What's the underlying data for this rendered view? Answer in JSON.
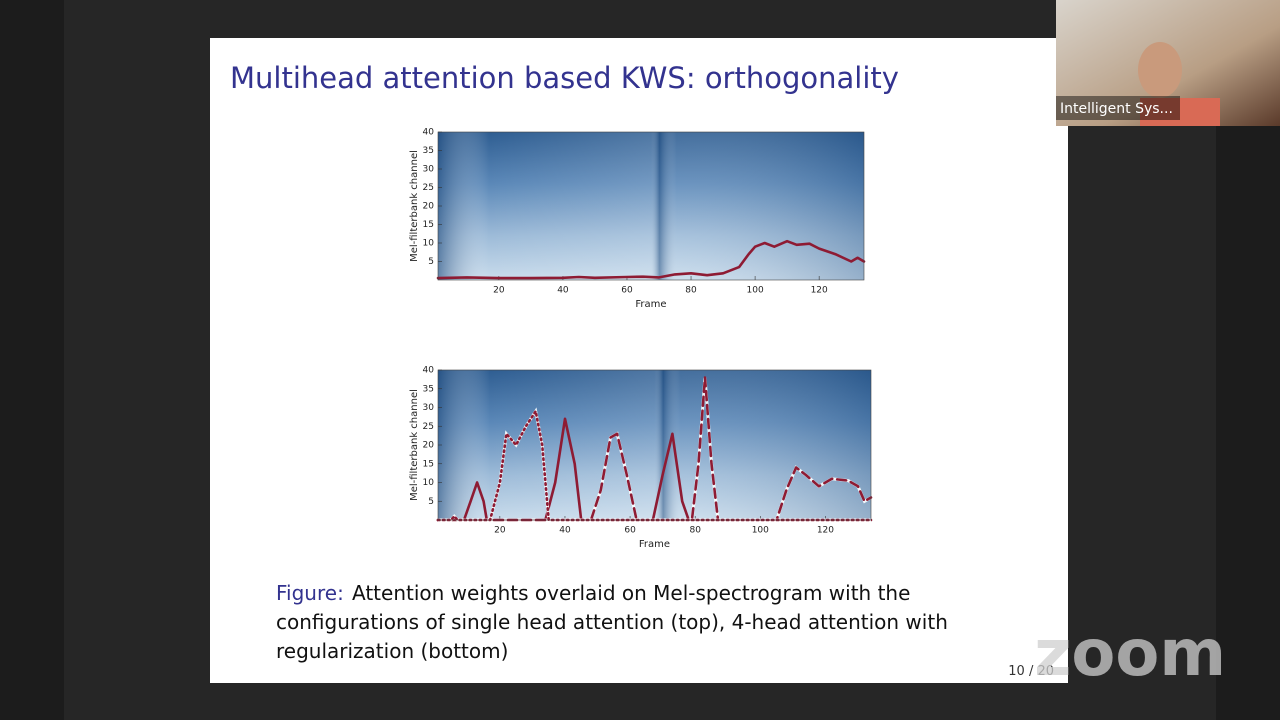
{
  "slide": {
    "title": "Multihead attention based KWS: orthogonality",
    "caption": {
      "label": "Figure:",
      "lines": [
        "Attention weights overlaid on Mel-spectrogram with the",
        "configurations of single head attention (top), 4-head attention with",
        "regularization (bottom)"
      ]
    },
    "page": "10 / 20"
  },
  "chart_data": [
    {
      "type": "line",
      "x_label": "Frame",
      "y_label": "Mel-filterbank channel",
      "xlim": [
        1,
        134
      ],
      "ylim": [
        0,
        40
      ],
      "xticks": [
        20,
        40,
        60,
        80,
        100,
        120
      ],
      "yticks": [
        5,
        10,
        15,
        20,
        25,
        30,
        35,
        40
      ],
      "series": [
        {
          "color": "#8e1b33",
          "style": "solid",
          "x": [
            1,
            10,
            20,
            30,
            40,
            45,
            50,
            60,
            65,
            70,
            75,
            80,
            85,
            90,
            95,
            98,
            100,
            103,
            106,
            110,
            113,
            117,
            120,
            125,
            130,
            132,
            134
          ],
          "values": [
            0.5,
            0.7,
            0.5,
            0.5,
            0.6,
            0.8,
            0.6,
            0.8,
            0.9,
            0.7,
            1.5,
            1.8,
            1.3,
            1.8,
            3.5,
            7,
            9,
            10,
            9,
            10.5,
            9.5,
            9.8,
            8.5,
            7,
            5,
            6,
            5
          ]
        }
      ]
    },
    {
      "type": "line",
      "x_label": "Frame",
      "y_label": "Mel-filterbank channel",
      "xlim": [
        1,
        134
      ],
      "ylim": [
        0,
        40
      ],
      "xticks": [
        20,
        40,
        60,
        80,
        100,
        120
      ],
      "yticks": [
        5,
        10,
        15,
        20,
        25,
        30,
        35,
        40
      ],
      "series": [
        {
          "color": "#8e1b33",
          "style": "solid",
          "x": [
            1,
            9,
            11,
            13,
            15,
            16,
            34,
            37,
            40,
            43,
            45,
            67,
            70,
            73,
            76,
            78,
            134
          ],
          "values": [
            0,
            0,
            5,
            10,
            5,
            0,
            0,
            10,
            27,
            15,
            0,
            0,
            12,
            23,
            5,
            0,
            0
          ]
        },
        {
          "color": "#8e1b33",
          "style": "dashed",
          "x": [
            1,
            48,
            51,
            54,
            56,
            59,
            62,
            79,
            81,
            83,
            85,
            87,
            105,
            108,
            111,
            114,
            118,
            122,
            127,
            130,
            132,
            134
          ],
          "values": [
            0,
            0,
            8,
            22,
            23,
            12,
            0,
            0,
            15,
            38,
            15,
            0,
            0,
            8,
            14,
            12,
            9,
            11,
            10.5,
            9,
            5,
            6
          ]
        },
        {
          "color": "#8e1b33",
          "style": "dotted",
          "x": [
            1,
            5,
            6,
            7,
            17,
            20,
            22,
            25,
            28,
            31,
            33,
            35,
            134
          ],
          "values": [
            0,
            0,
            1,
            0,
            0,
            10,
            23,
            20,
            25,
            29,
            20,
            0,
            0
          ]
        }
      ]
    }
  ],
  "meeting": {
    "participant_name": "Intelligent Sys...",
    "watermark": "zoom"
  }
}
